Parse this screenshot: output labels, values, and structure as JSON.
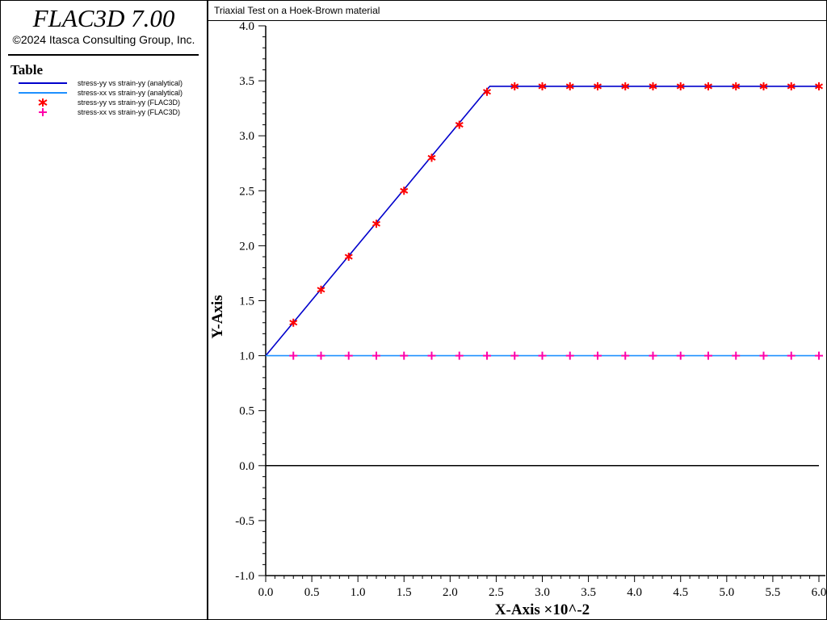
{
  "app": {
    "title": "FLAC3D 7.00",
    "copyright": "©2024 Itasca Consulting Group, Inc."
  },
  "legend": {
    "heading": "Table",
    "items": [
      {
        "label": "stress-yy vs strain-yy (analytical)",
        "marker": "line",
        "color": "#0000cc"
      },
      {
        "label": "stress-xx vs strain-yy (analytical)",
        "marker": "line",
        "color": "#1e90ff"
      },
      {
        "label": "stress-yy vs strain-yy (FLAC3D)",
        "marker": "asterisk",
        "color": "#ff0000"
      },
      {
        "label": "stress-xx vs strain-yy (FLAC3D)",
        "marker": "plus",
        "color": "#ff00aa"
      }
    ]
  },
  "chart_data": {
    "type": "line",
    "title": "Triaxial Test on a Hoek-Brown material",
    "xlabel": "X-Axis ×10^-2",
    "ylabel": "Y-Axis",
    "xlim": [
      0.0,
      6.0
    ],
    "ylim": [
      -1.0,
      4.0
    ],
    "x_ticks": [
      "0.0",
      "0.5",
      "1.0",
      "1.5",
      "2.0",
      "2.5",
      "3.0",
      "3.5",
      "4.0",
      "4.5",
      "5.0",
      "5.5",
      "6.0"
    ],
    "y_ticks": [
      "-1.0",
      "-0.5",
      "0.0",
      "0.5",
      "1.0",
      "1.5",
      "2.0",
      "2.5",
      "3.0",
      "3.5",
      "4.0"
    ],
    "grid": false,
    "zero_line": true,
    "series": [
      {
        "name": "stress-yy vs strain-yy (analytical)",
        "style": "line",
        "color": "#0000cc",
        "x": [
          0.0,
          2.43,
          6.0
        ],
        "y": [
          1.0,
          3.45,
          3.45
        ]
      },
      {
        "name": "stress-xx vs strain-yy (analytical)",
        "style": "line",
        "color": "#1e90ff",
        "x": [
          0.0,
          6.0
        ],
        "y": [
          1.0,
          1.0
        ]
      },
      {
        "name": "stress-yy vs strain-yy (FLAC3D)",
        "style": "asterisk",
        "color": "#ff0000",
        "x": [
          0.3,
          0.6,
          0.9,
          1.2,
          1.5,
          1.8,
          2.1,
          2.4,
          2.7,
          3.0,
          3.3,
          3.6,
          3.9,
          4.2,
          4.5,
          4.8,
          5.1,
          5.4,
          5.7,
          6.0
        ],
        "y": [
          1.3,
          1.6,
          1.9,
          2.2,
          2.5,
          2.8,
          3.1,
          3.4,
          3.45,
          3.45,
          3.45,
          3.45,
          3.45,
          3.45,
          3.45,
          3.45,
          3.45,
          3.45,
          3.45,
          3.45
        ]
      },
      {
        "name": "stress-xx vs strain-yy (FLAC3D)",
        "style": "plus",
        "color": "#ff00aa",
        "x": [
          0.3,
          0.6,
          0.9,
          1.2,
          1.5,
          1.8,
          2.1,
          2.4,
          2.7,
          3.0,
          3.3,
          3.6,
          3.9,
          4.2,
          4.5,
          4.8,
          5.1,
          5.4,
          5.7,
          6.0
        ],
        "y": [
          1.0,
          1.0,
          1.0,
          1.0,
          1.0,
          1.0,
          1.0,
          1.0,
          1.0,
          1.0,
          1.0,
          1.0,
          1.0,
          1.0,
          1.0,
          1.0,
          1.0,
          1.0,
          1.0,
          1.0
        ]
      }
    ]
  }
}
